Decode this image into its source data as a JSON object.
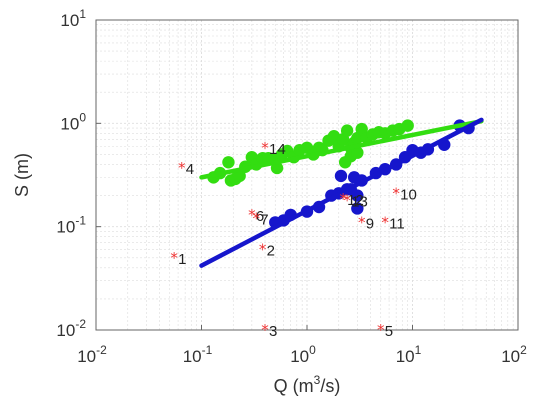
{
  "chart_data": {
    "type": "scatter",
    "title": "",
    "xlabel": "Q (m",
    "xlabel_sup": "3",
    "xlabel_suffix": "/s)",
    "ylabel": "S (m)",
    "xscale": "log",
    "yscale": "log",
    "xlim": [
      0.01,
      100
    ],
    "ylim": [
      0.01,
      10
    ],
    "xticks": [
      {
        "base": "10",
        "exp": "-2",
        "value": 0.01
      },
      {
        "base": "10",
        "exp": "-1",
        "value": 0.1
      },
      {
        "base": "10",
        "exp": "0",
        "value": 1
      },
      {
        "base": "10",
        "exp": "1",
        "value": 10
      },
      {
        "base": "10",
        "exp": "2",
        "value": 100
      }
    ],
    "yticks": [
      {
        "base": "10",
        "exp": "-2",
        "value": 0.01
      },
      {
        "base": "10",
        "exp": "-1",
        "value": 0.1
      },
      {
        "base": "10",
        "exp": "0",
        "value": 1
      },
      {
        "base": "10",
        "exp": "1",
        "value": 10
      }
    ],
    "grid": true,
    "colors": {
      "green": "#33dd11",
      "blue": "#1616cc",
      "star": "#ee3333",
      "grid": "#dddddd",
      "axis": "#666666"
    },
    "series": [
      {
        "marker": "circle",
        "color": "#33dd11",
        "points": [
          [
            0.13,
            0.3
          ],
          [
            0.15,
            0.33
          ],
          [
            0.18,
            0.42
          ],
          [
            0.19,
            0.28
          ],
          [
            0.21,
            0.29
          ],
          [
            0.23,
            0.31
          ],
          [
            0.26,
            0.38
          ],
          [
            0.3,
            0.47
          ],
          [
            0.33,
            0.4
          ],
          [
            0.38,
            0.46
          ],
          [
            0.43,
            0.46
          ],
          [
            0.47,
            0.45
          ],
          [
            0.52,
            0.37
          ],
          [
            0.58,
            0.5
          ],
          [
            0.65,
            0.54
          ],
          [
            0.75,
            0.47
          ],
          [
            0.85,
            0.55
          ],
          [
            1.0,
            0.58
          ],
          [
            1.15,
            0.5
          ],
          [
            1.3,
            0.58
          ],
          [
            1.4,
            0.55
          ],
          [
            1.6,
            0.68
          ],
          [
            1.8,
            0.75
          ],
          [
            2.0,
            0.6
          ],
          [
            2.2,
            0.7
          ],
          [
            2.4,
            0.85
          ],
          [
            2.6,
            0.58
          ],
          [
            2.8,
            0.65
          ],
          [
            3.0,
            0.72
          ],
          [
            3.3,
            0.88
          ],
          [
            3.7,
            0.72
          ],
          [
            4.2,
            0.78
          ],
          [
            4.8,
            0.82
          ],
          [
            5.5,
            0.8
          ],
          [
            6.5,
            0.85
          ],
          [
            7.5,
            0.88
          ],
          [
            9.0,
            0.95
          ],
          [
            2.3,
            0.42
          ],
          [
            2.6,
            0.48
          ],
          [
            3.0,
            0.52
          ]
        ],
        "fit": [
          [
            0.1,
            0.3
          ],
          [
            45,
            1.05
          ]
        ]
      },
      {
        "marker": "circle",
        "color": "#1616cc",
        "points": [
          [
            0.5,
            0.11
          ],
          [
            0.6,
            0.115
          ],
          [
            0.7,
            0.13
          ],
          [
            1.0,
            0.14
          ],
          [
            1.3,
            0.155
          ],
          [
            1.7,
            0.2
          ],
          [
            2.0,
            0.21
          ],
          [
            2.1,
            0.31
          ],
          [
            2.4,
            0.23
          ],
          [
            2.6,
            0.23
          ],
          [
            2.8,
            0.3
          ],
          [
            3.0,
            0.15
          ],
          [
            3.0,
            0.2
          ],
          [
            3.3,
            0.28
          ],
          [
            4.5,
            0.33
          ],
          [
            5.5,
            0.36
          ],
          [
            7.0,
            0.4
          ],
          [
            8.5,
            0.47
          ],
          [
            10.0,
            0.55
          ],
          [
            12.0,
            0.52
          ],
          [
            14.0,
            0.56
          ],
          [
            20.0,
            0.62
          ],
          [
            28.0,
            0.95
          ],
          [
            34.0,
            0.9
          ]
        ],
        "fit": [
          [
            0.1,
            0.042
          ],
          [
            45,
            1.08
          ]
        ]
      },
      {
        "marker": "star",
        "color": "#ee3333",
        "points": [
          {
            "label": "1",
            "x": 0.055,
            "y": 0.05
          },
          {
            "label": "2",
            "x": 0.38,
            "y": 0.06
          },
          {
            "label": "3",
            "x": 0.4,
            "y": 0.01
          },
          {
            "label": "4",
            "x": 0.065,
            "y": 0.37
          },
          {
            "label": "5",
            "x": 5.0,
            "y": 0.01
          },
          {
            "label": "6",
            "x": 0.3,
            "y": 0.13
          },
          {
            "label": "7",
            "x": 0.33,
            "y": 0.12
          },
          {
            "label": "9",
            "x": 3.3,
            "y": 0.11
          },
          {
            "label": "10",
            "x": 7.0,
            "y": 0.21
          },
          {
            "label": "11",
            "x": 5.5,
            "y": 0.11
          },
          {
            "label": "12",
            "x": 2.2,
            "y": 0.185
          },
          {
            "label": "13",
            "x": 2.4,
            "y": 0.18
          },
          {
            "label": "14",
            "x": 0.4,
            "y": 0.58
          }
        ]
      }
    ]
  }
}
